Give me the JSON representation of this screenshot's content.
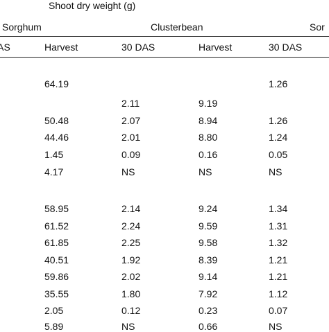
{
  "header": {
    "super_title": "Shoot dry weight (g)",
    "group_sorghum_left": "Sorghum",
    "group_clusterbean": "Clusterbean",
    "group_sorghum_right": "Sor"
  },
  "columns": [
    "DAS",
    "Harvest",
    "30 DAS",
    "Harvest",
    "30 DAS"
  ],
  "rows": [
    [
      "",
      "64.19",
      "",
      "",
      "1.26"
    ],
    [
      "",
      "",
      "2.11",
      "9.19",
      ""
    ],
    [
      "",
      "50.48",
      "2.07",
      "8.94",
      "1.26"
    ],
    [
      "",
      "44.46",
      "2.01",
      "8.80",
      "1.24"
    ],
    [
      "",
      "1.45",
      "0.09",
      "0.16",
      "0.05"
    ],
    [
      "",
      "4.17",
      "NS",
      "NS",
      "NS"
    ],
    [
      "",
      "58.95",
      "2.14",
      "9.24",
      "1.34"
    ],
    [
      "",
      "61.52",
      "2.24",
      "9.59",
      "1.31"
    ],
    [
      "",
      "61.85",
      "2.25",
      "9.58",
      "1.32"
    ],
    [
      "",
      "40.51",
      "1.92",
      "8.39",
      "1.21"
    ],
    [
      "",
      "59.86",
      "2.02",
      "9.14",
      "1.21"
    ],
    [
      "",
      "35.55",
      "1.80",
      "7.92",
      "1.12"
    ],
    [
      "",
      "2.05",
      "0.12",
      "0.23",
      "0.07"
    ],
    [
      "",
      "5.89",
      "NS",
      "0.66",
      "NS"
    ]
  ]
}
